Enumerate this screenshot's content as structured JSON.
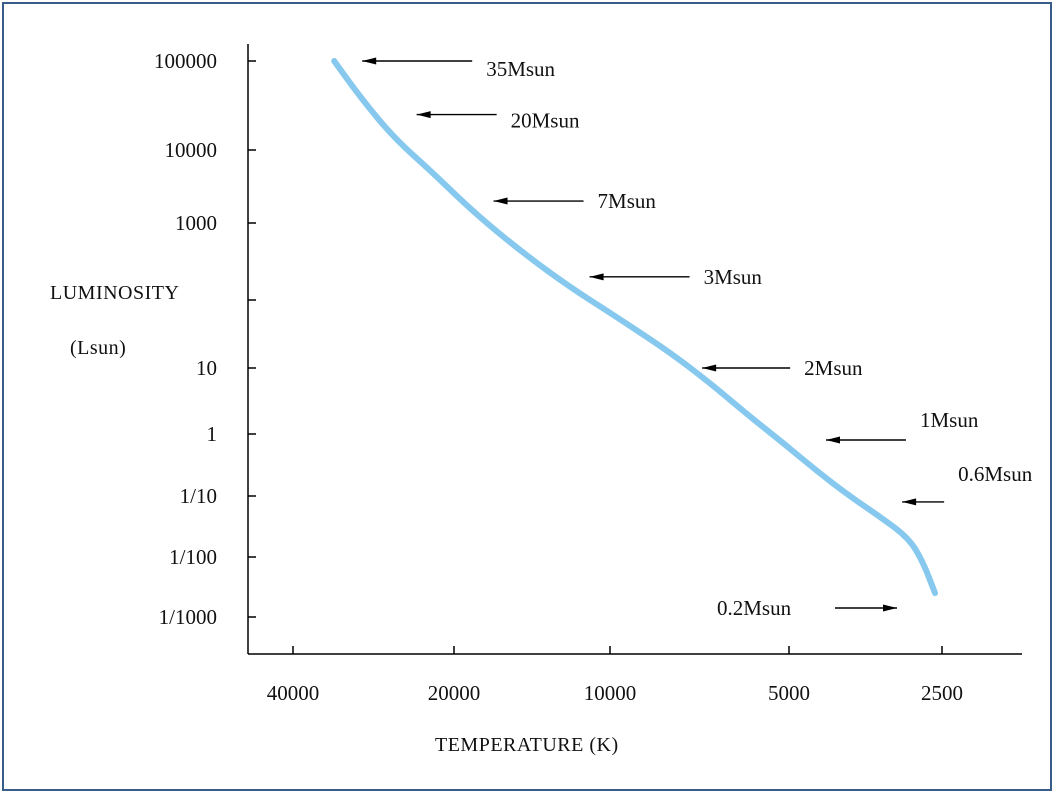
{
  "chart_data": {
    "type": "line",
    "title": "",
    "xlabel": "TEMPERATURE (K)",
    "ylabel": "LUMINOSITY",
    "ylabel_unit": "(Lsun)",
    "x_scale": "log",
    "y_scale": "log",
    "x_reversed": true,
    "xlim": [
      55000,
      1800
    ],
    "ylim": [
      0.0002,
      500000
    ],
    "x_ticks": [
      {
        "value": 40000,
        "label": "40000"
      },
      {
        "value": 20000,
        "label": "20000"
      },
      {
        "value": 10000,
        "label": "10000"
      },
      {
        "value": 5000,
        "label": "5000"
      },
      {
        "value": 2500,
        "label": "2500"
      }
    ],
    "y_ticks": [
      {
        "value": 100000,
        "label": "100000"
      },
      {
        "value": 10000,
        "label": "10000"
      },
      {
        "value": 1000,
        "label": "1000"
      },
      {
        "value": 100,
        "label": ""
      },
      {
        "value": 10,
        "label": "10"
      },
      {
        "value": 1,
        "label": "1"
      },
      {
        "value": 0.1,
        "label": "1/10"
      },
      {
        "value": 0.01,
        "label": "1/100"
      },
      {
        "value": 0.001,
        "label": "1/1000"
      }
    ],
    "series": [
      {
        "color": "#87c9ee",
        "points": [
          {
            "x": 33500,
            "y": 100000
          },
          {
            "x": 30000,
            "y": 40000
          },
          {
            "x": 26000,
            "y": 14000
          },
          {
            "x": 22000,
            "y": 5000
          },
          {
            "x": 19000,
            "y": 1800
          },
          {
            "x": 17000,
            "y": 900
          },
          {
            "x": 14500,
            "y": 380
          },
          {
            "x": 12000,
            "y": 150
          },
          {
            "x": 10000,
            "y": 65
          },
          {
            "x": 8000,
            "y": 18
          },
          {
            "x": 6800,
            "y": 6
          },
          {
            "x": 5800,
            "y": 1.8
          },
          {
            "x": 5100,
            "y": 0.7
          },
          {
            "x": 4400,
            "y": 0.25
          },
          {
            "x": 3800,
            "y": 0.1
          },
          {
            "x": 3300,
            "y": 0.045
          },
          {
            "x": 2900,
            "y": 0.02
          },
          {
            "x": 2720,
            "y": 0.008
          },
          {
            "x": 2580,
            "y": 0.0025
          }
        ]
      }
    ],
    "annotations": [
      {
        "label": "35Msun",
        "x": 33500,
        "y": 100000
      },
      {
        "label": "20Msun",
        "x": 26500,
        "y": 25000
      },
      {
        "label": "7Msun",
        "x": 19000,
        "y": 2000
      },
      {
        "label": "3Msun",
        "x": 12400,
        "y": 200
      },
      {
        "label": "2Msun",
        "x": 7800,
        "y": 10
      },
      {
        "label": "1Msun",
        "x": 4800,
        "y": 0.8
      },
      {
        "label": "0.6Msun",
        "x": 3400,
        "y": 0.08
      },
      {
        "label": "0.2Msun",
        "x": 2900,
        "y": 0.0008
      }
    ],
    "grid": false,
    "legend": "none"
  }
}
